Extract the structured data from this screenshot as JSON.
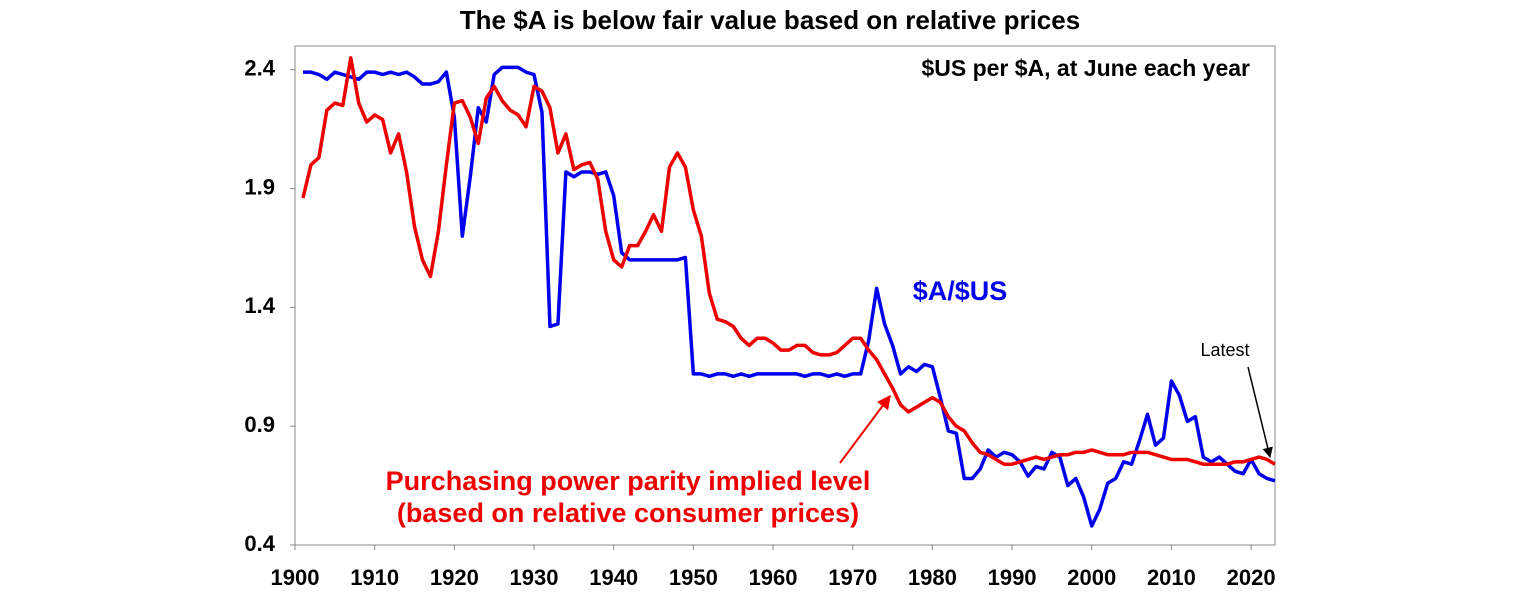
{
  "chart_data": {
    "type": "line",
    "title": "The $A is below fair value based on relative prices",
    "annotations": {
      "units": "$US per $A, at June each year",
      "latest": "Latest",
      "ppp_line1": "Purchasing power parity implied level",
      "ppp_line2": "(based on relative consumer prices)"
    },
    "x": [
      1901,
      1902,
      1903,
      1904,
      1905,
      1906,
      1907,
      1908,
      1909,
      1910,
      1911,
      1912,
      1913,
      1914,
      1915,
      1916,
      1917,
      1918,
      1919,
      1920,
      1921,
      1922,
      1923,
      1924,
      1925,
      1926,
      1927,
      1928,
      1929,
      1930,
      1931,
      1932,
      1933,
      1934,
      1935,
      1936,
      1937,
      1938,
      1939,
      1940,
      1941,
      1942,
      1943,
      1944,
      1945,
      1946,
      1947,
      1948,
      1949,
      1950,
      1951,
      1952,
      1953,
      1954,
      1955,
      1956,
      1957,
      1958,
      1959,
      1960,
      1961,
      1962,
      1963,
      1964,
      1965,
      1966,
      1967,
      1968,
      1969,
      1970,
      1971,
      1972,
      1973,
      1974,
      1975,
      1976,
      1977,
      1978,
      1979,
      1980,
      1981,
      1982,
      1983,
      1984,
      1985,
      1986,
      1987,
      1988,
      1989,
      1990,
      1991,
      1992,
      1993,
      1994,
      1995,
      1996,
      1997,
      1998,
      1999,
      2000,
      2001,
      2002,
      2003,
      2004,
      2005,
      2006,
      2007,
      2008,
      2009,
      2010,
      2011,
      2012,
      2013,
      2014,
      2015,
      2016,
      2017,
      2018,
      2019,
      2020,
      2021,
      2022,
      2023
    ],
    "series": [
      {
        "name": "$A/$US",
        "color": "#0000ee",
        "values": [
          2.39,
          2.39,
          2.38,
          2.36,
          2.39,
          2.38,
          2.37,
          2.36,
          2.39,
          2.39,
          2.38,
          2.39,
          2.38,
          2.39,
          2.37,
          2.34,
          2.34,
          2.35,
          2.39,
          2.2,
          1.7,
          1.95,
          2.24,
          2.18,
          2.38,
          2.41,
          2.41,
          2.41,
          2.39,
          2.38,
          2.22,
          1.32,
          1.33,
          1.97,
          1.95,
          1.97,
          1.97,
          1.96,
          1.97,
          1.87,
          1.63,
          1.6,
          1.6,
          1.6,
          1.6,
          1.6,
          1.6,
          1.6,
          1.61,
          1.12,
          1.12,
          1.11,
          1.12,
          1.12,
          1.11,
          1.12,
          1.11,
          1.12,
          1.12,
          1.12,
          1.12,
          1.12,
          1.12,
          1.11,
          1.12,
          1.12,
          1.11,
          1.12,
          1.11,
          1.12,
          1.12,
          1.26,
          1.48,
          1.33,
          1.24,
          1.12,
          1.15,
          1.13,
          1.16,
          1.15,
          1.02,
          0.88,
          0.87,
          0.68,
          0.68,
          0.72,
          0.8,
          0.77,
          0.79,
          0.78,
          0.75,
          0.69,
          0.73,
          0.72,
          0.79,
          0.77,
          0.65,
          0.68,
          0.6,
          0.48,
          0.55,
          0.66,
          0.68,
          0.75,
          0.74,
          0.84,
          0.95,
          0.82,
          0.85,
          1.09,
          1.03,
          0.92,
          0.94,
          0.77,
          0.75,
          0.77,
          0.74,
          0.71,
          0.7,
          0.76,
          0.7,
          0.68,
          0.67
        ]
      },
      {
        "name": "Purchasing power parity implied level",
        "color": "#ee0000",
        "values": [
          1.86,
          2.0,
          2.03,
          2.23,
          2.26,
          2.25,
          2.45,
          2.26,
          2.18,
          2.21,
          2.19,
          2.05,
          2.13,
          1.97,
          1.74,
          1.6,
          1.53,
          1.72,
          2.0,
          2.26,
          2.27,
          2.2,
          2.09,
          2.28,
          2.33,
          2.27,
          2.23,
          2.21,
          2.16,
          2.33,
          2.31,
          2.24,
          2.05,
          2.13,
          1.98,
          2.0,
          2.01,
          1.94,
          1.72,
          1.6,
          1.57,
          1.66,
          1.66,
          1.72,
          1.79,
          1.72,
          1.99,
          2.05,
          1.99,
          1.81,
          1.7,
          1.46,
          1.35,
          1.34,
          1.32,
          1.27,
          1.24,
          1.27,
          1.27,
          1.25,
          1.22,
          1.22,
          1.24,
          1.24,
          1.21,
          1.2,
          1.2,
          1.21,
          1.24,
          1.27,
          1.27,
          1.22,
          1.18,
          1.12,
          1.06,
          0.99,
          0.96,
          0.98,
          1.0,
          1.02,
          1.0,
          0.94,
          0.9,
          0.88,
          0.83,
          0.79,
          0.78,
          0.76,
          0.74,
          0.74,
          0.75,
          0.76,
          0.77,
          0.76,
          0.77,
          0.78,
          0.78,
          0.79,
          0.79,
          0.8,
          0.79,
          0.78,
          0.78,
          0.78,
          0.79,
          0.79,
          0.79,
          0.78,
          0.77,
          0.76,
          0.76,
          0.76,
          0.75,
          0.74,
          0.74,
          0.74,
          0.74,
          0.75,
          0.75,
          0.76,
          0.77,
          0.76,
          0.74
        ]
      }
    ],
    "xlim": [
      1900,
      2023
    ],
    "xticks": [
      1900,
      1910,
      1920,
      1930,
      1940,
      1950,
      1960,
      1970,
      1980,
      1990,
      2000,
      2010,
      2020
    ],
    "ylim": [
      0.4,
      2.5
    ],
    "yticks": [
      0.4,
      0.9,
      1.4,
      1.9,
      2.4
    ],
    "grid": false
  }
}
